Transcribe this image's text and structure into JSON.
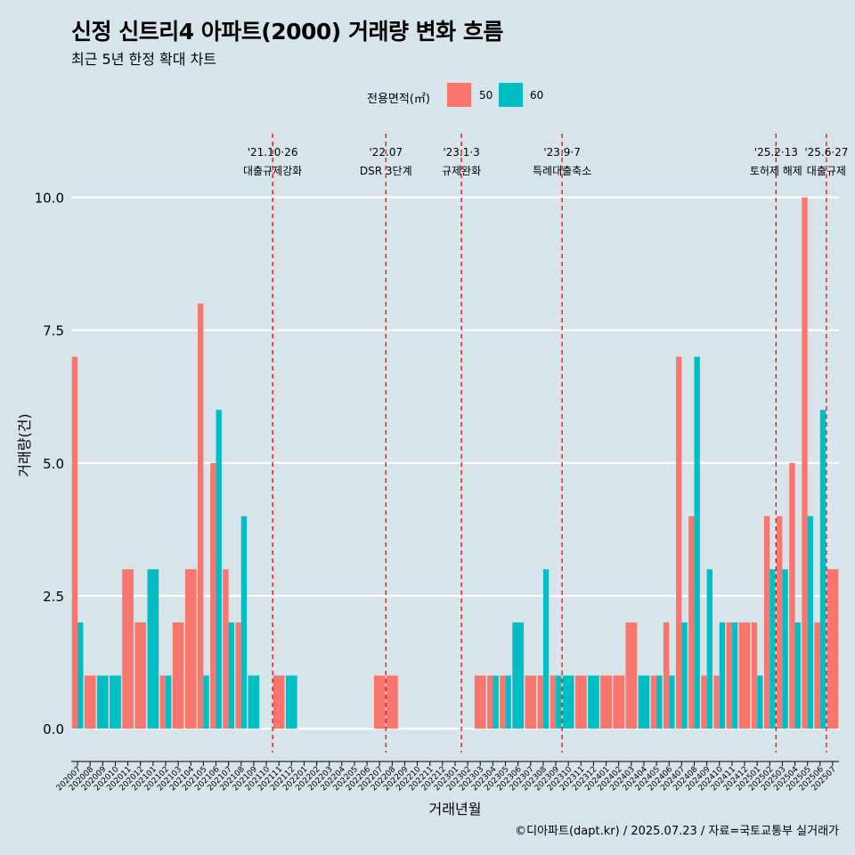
{
  "header": {
    "title": "신정 신트리4 아파트(2000) 거래량 변화 흐름",
    "subtitle": "최근 5년 한정 확대 차트"
  },
  "caption": "©디아파트(dapt.kr) / 2025.07.23 / 자료=국토교통부 실거래가",
  "legend": {
    "title": "전용면적(㎡)",
    "items": [
      {
        "label": "50",
        "color": "#f8766d"
      },
      {
        "label": "60",
        "color": "#00bfc4"
      }
    ]
  },
  "chart_data": {
    "type": "bar",
    "title": "신정 신트리4 아파트(2000) 거래량 변화 흐름",
    "subtitle": "최근 5년 한정 확대 차트",
    "xlabel": "거래년월",
    "ylabel": "거래량(건)",
    "ylim": [
      -0.45,
      11.2
    ],
    "yticks": [
      "0.0",
      "2.5",
      "5.0",
      "7.5",
      "10.0"
    ],
    "ytick_values": [
      0,
      2.5,
      5,
      7.5,
      10
    ],
    "grid": true,
    "legend_position": "top",
    "categories": [
      "202007",
      "202008",
      "202009",
      "202010",
      "202011",
      "202012",
      "202101",
      "202102",
      "202103",
      "202104",
      "202105",
      "202106",
      "202107",
      "202108",
      "202109",
      "202110",
      "202111",
      "202112",
      "202201",
      "202202",
      "202203",
      "202204",
      "202205",
      "202206",
      "202207",
      "202208",
      "202209",
      "202210",
      "202211",
      "202212",
      "202301",
      "202302",
      "202303",
      "202304",
      "202305",
      "202306",
      "202307",
      "202308",
      "202309",
      "202310",
      "202311",
      "202312",
      "202401",
      "202402",
      "202403",
      "202404",
      "202405",
      "202406",
      "202407",
      "202408",
      "202409",
      "202410",
      "202411",
      "202412",
      "202501",
      "202502",
      "202503",
      "202504",
      "202505",
      "202506",
      "202507"
    ],
    "series": [
      {
        "name": "50",
        "color": "#f8766d",
        "values": [
          7,
          1,
          0,
          0,
          3,
          2,
          0,
          1,
          2,
          3,
          8,
          5,
          3,
          2,
          0,
          0,
          1,
          0,
          0,
          0,
          0,
          0,
          0,
          0,
          1,
          1,
          0,
          0,
          0,
          0,
          0,
          0,
          1,
          1,
          1,
          0,
          1,
          1,
          1,
          0,
          1,
          0,
          1,
          1,
          2,
          0,
          1,
          2,
          7,
          4,
          1,
          1,
          2,
          2,
          2,
          4,
          4,
          5,
          10,
          2,
          3
        ]
      },
      {
        "name": "60",
        "color": "#00bfc4",
        "values": [
          2,
          0,
          1,
          1,
          0,
          0,
          3,
          1,
          0,
          0,
          1,
          6,
          2,
          4,
          1,
          0,
          0,
          1,
          0,
          0,
          0,
          0,
          0,
          0,
          0,
          0,
          0,
          0,
          0,
          0,
          0,
          0,
          0,
          1,
          1,
          2,
          0,
          3,
          1,
          1,
          0,
          1,
          0,
          0,
          0,
          1,
          1,
          1,
          2,
          7,
          3,
          2,
          2,
          0,
          1,
          3,
          3,
          2,
          4,
          6,
          0
        ]
      }
    ],
    "events": [
      {
        "date_line1": "'21.10·26",
        "date_line2": "대출규제강화",
        "index": 15.5
      },
      {
        "date_line1": "'22.07",
        "date_line2": "DSR 3단계",
        "index": 24.5
      },
      {
        "date_line1": "'23.1·3",
        "date_line2": "규제완화",
        "index": 30.5
      },
      {
        "date_line1": "'23.9·7",
        "date_line2": "특례대출축소",
        "index": 38.5
      },
      {
        "date_line1": "'25.2·13",
        "date_line2": "토허제 해제",
        "index": 55.5
      },
      {
        "date_line1": "'25.6·27",
        "date_line2": "대출규제",
        "index": 59.5
      }
    ]
  }
}
